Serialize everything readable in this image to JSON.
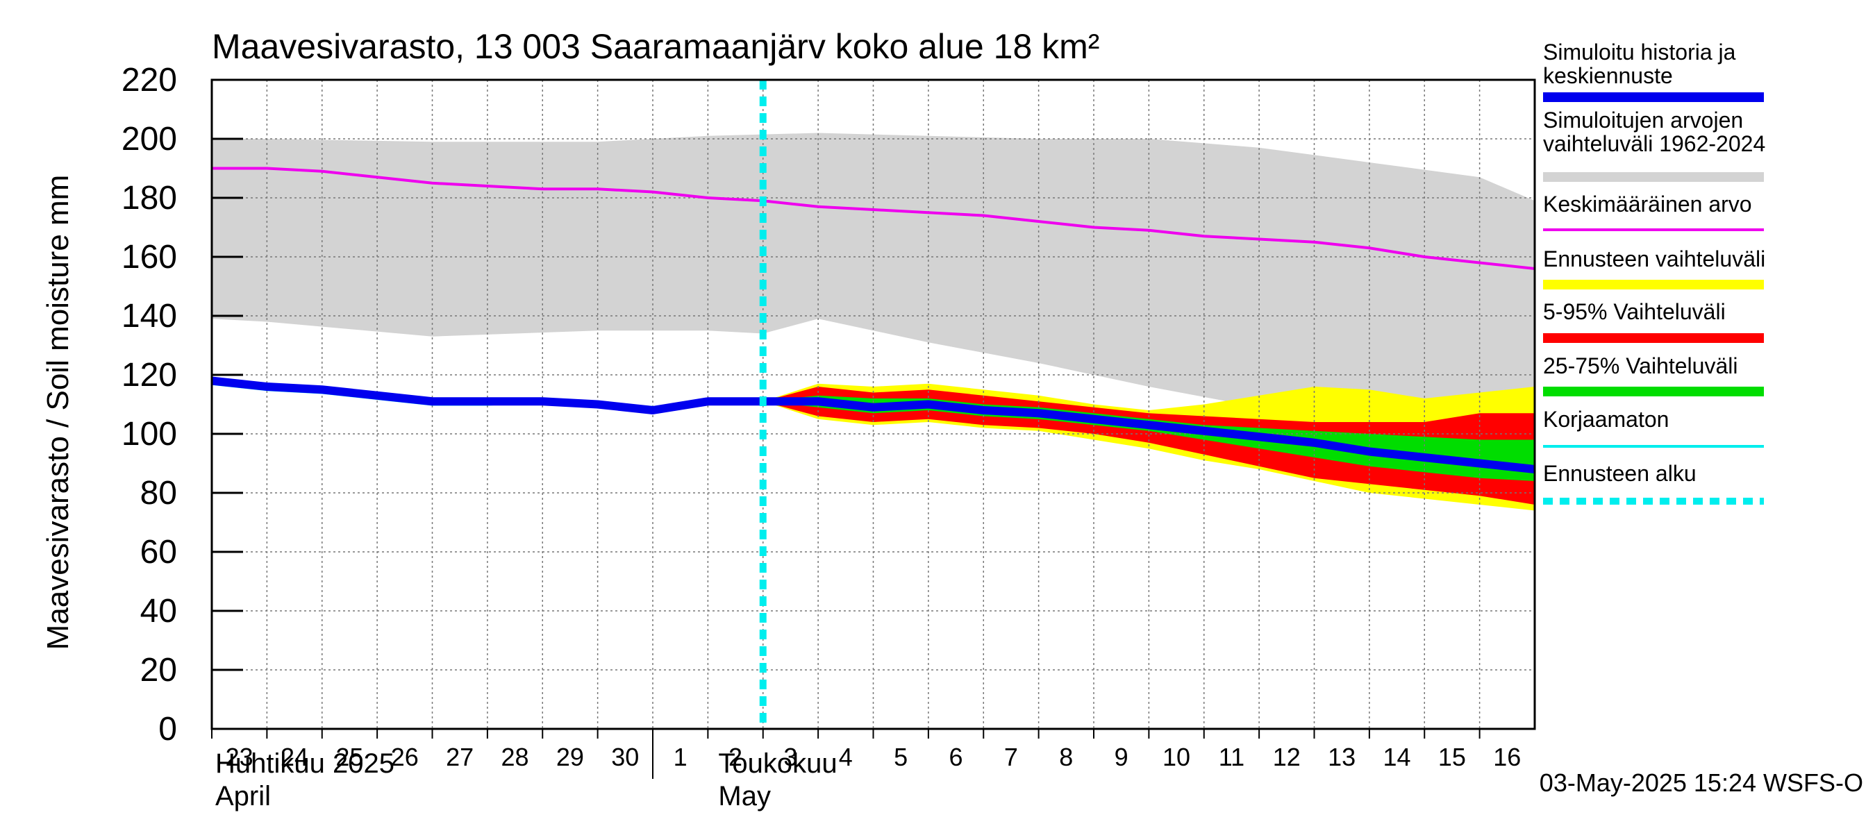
{
  "chart_data": {
    "type": "line",
    "title": "Maavesivarasto, 13 003 Saaramaanjärv koko alue 18 km²",
    "ylabel": "Maavesivarasto / Soil moisture   mm",
    "ylim": [
      0,
      220
    ],
    "yticks": [
      0,
      20,
      40,
      60,
      80,
      100,
      120,
      140,
      160,
      180,
      200,
      220
    ],
    "x_start": 23,
    "x_end": 47,
    "xtick_labels": [
      "23",
      "24",
      "25",
      "26",
      "27",
      "28",
      "29",
      "30",
      "1",
      "2",
      "3",
      "4",
      "5",
      "6",
      "7",
      "8",
      "9",
      "10",
      "11",
      "12",
      "13",
      "14",
      "15",
      "16"
    ],
    "month_labels": {
      "april_fi": "Huhtikuu  2025",
      "april_en": "April",
      "may_fi": "Toukokuu",
      "may_en": "May"
    },
    "month_boundary_x": 31,
    "forecast_start_x": 33,
    "grid": true,
    "timestamp": "03-May-2025 15:24 WSFS-O",
    "legend": [
      {
        "label": "Simuloitu historia ja keskiennuste",
        "color": "#0000ee",
        "style": "thick"
      },
      {
        "label": "Simuloitujen arvojen vaihteluväli 1962-2024",
        "color": "#d3d3d3",
        "style": "thick"
      },
      {
        "label": "Keskimääräinen arvo",
        "color": "#ee00ee",
        "style": "thin"
      },
      {
        "label": "Ennusteen vaihteluväli",
        "color": "#ffff00",
        "style": "thick"
      },
      {
        "label": "5-95% Vaihteluväli",
        "color": "#ff0000",
        "style": "thick"
      },
      {
        "label": "25-75% Vaihteluväli",
        "color": "#00dd00",
        "style": "thick"
      },
      {
        "label": "Korjaamaton",
        "color": "#00eeee",
        "style": "thin"
      },
      {
        "label": "Ennusteen alku",
        "color": "#00eeee",
        "style": "dashed"
      }
    ],
    "series": {
      "hist_range_upper": {
        "x": [
          23,
          24,
          27,
          30,
          32,
          34,
          36,
          38,
          40,
          42,
          44,
          46,
          47
        ],
        "y": [
          200,
          200,
          199,
          199,
          201,
          202,
          201,
          200,
          200,
          197,
          192,
          187,
          179
        ]
      },
      "hist_range_lower": {
        "x": [
          23,
          24,
          27,
          30,
          32,
          33,
          34,
          36,
          38,
          40,
          42,
          44,
          46,
          47
        ],
        "y": [
          139,
          138,
          133,
          135,
          135,
          134,
          139,
          131,
          124,
          116,
          109,
          105,
          104,
          111
        ]
      },
      "mean": {
        "x": [
          23,
          24,
          25,
          26,
          27,
          28,
          29,
          30,
          31,
          32,
          33,
          34,
          35,
          36,
          37,
          38,
          39,
          40,
          41,
          42,
          43,
          44,
          45,
          46,
          47
        ],
        "y": [
          190,
          190,
          189,
          187,
          185,
          184,
          183,
          183,
          182,
          180,
          179,
          177,
          176,
          175,
          174,
          172,
          170,
          169,
          167,
          166,
          165,
          163,
          160,
          158,
          156
        ]
      },
      "forecast_range_upper": {
        "x": [
          33,
          34,
          35,
          36,
          37,
          38,
          39,
          40,
          41,
          42,
          43,
          44,
          45,
          46,
          47
        ],
        "y": [
          111,
          117,
          116,
          117,
          115,
          113,
          110,
          108,
          110,
          113,
          116,
          115,
          112,
          114,
          116
        ]
      },
      "forecast_range_lower": {
        "x": [
          33,
          34,
          35,
          36,
          37,
          38,
          39,
          40,
          41,
          42,
          43,
          44,
          45,
          46,
          47
        ],
        "y": [
          111,
          105,
          103,
          104,
          102,
          101,
          98,
          95,
          91,
          88,
          84,
          80,
          78,
          76,
          74
        ]
      },
      "p5_95_upper": {
        "x": [
          33,
          34,
          35,
          36,
          37,
          38,
          39,
          40,
          41,
          42,
          43,
          44,
          45,
          46,
          47
        ],
        "y": [
          111,
          116,
          114,
          115,
          113,
          111,
          109,
          107,
          106,
          105,
          104,
          104,
          104,
          107,
          107
        ]
      },
      "p5_95_lower": {
        "x": [
          33,
          34,
          35,
          36,
          37,
          38,
          39,
          40,
          41,
          42,
          43,
          44,
          45,
          46,
          47
        ],
        "y": [
          111,
          106,
          104,
          105,
          103,
          102,
          100,
          97,
          93,
          89,
          85,
          83,
          81,
          79,
          76
        ]
      },
      "p25_75_upper": {
        "x": [
          33,
          34,
          35,
          36,
          37,
          38,
          39,
          40,
          41,
          42,
          43,
          44,
          45,
          46,
          47
        ],
        "y": [
          111,
          113,
          112,
          112,
          110,
          109,
          107,
          105,
          103,
          102,
          101,
          100,
          99,
          98,
          98
        ]
      },
      "p25_75_lower": {
        "x": [
          33,
          34,
          35,
          36,
          37,
          38,
          39,
          40,
          41,
          42,
          43,
          44,
          45,
          46,
          47
        ],
        "y": [
          111,
          109,
          107,
          108,
          106,
          105,
          103,
          101,
          98,
          95,
          92,
          89,
          87,
          85,
          84
        ]
      },
      "uncorrected": {
        "x": [
          23,
          24,
          25,
          26,
          27,
          28,
          29,
          30,
          31
        ],
        "y": [
          117,
          115,
          114,
          112,
          110,
          110,
          111,
          110,
          109
        ]
      },
      "median": {
        "x": [
          23,
          24,
          25,
          26,
          27,
          28,
          29,
          30,
          31,
          32,
          33,
          34,
          35,
          36,
          37,
          38,
          39,
          40,
          41,
          42,
          43,
          44,
          45,
          46,
          47
        ],
        "y": [
          118,
          116,
          115,
          113,
          111,
          111,
          111,
          110,
          108,
          111,
          111,
          111,
          109,
          110,
          108,
          107,
          105,
          103,
          101,
          99,
          97,
          94,
          92,
          90,
          88
        ]
      }
    }
  }
}
